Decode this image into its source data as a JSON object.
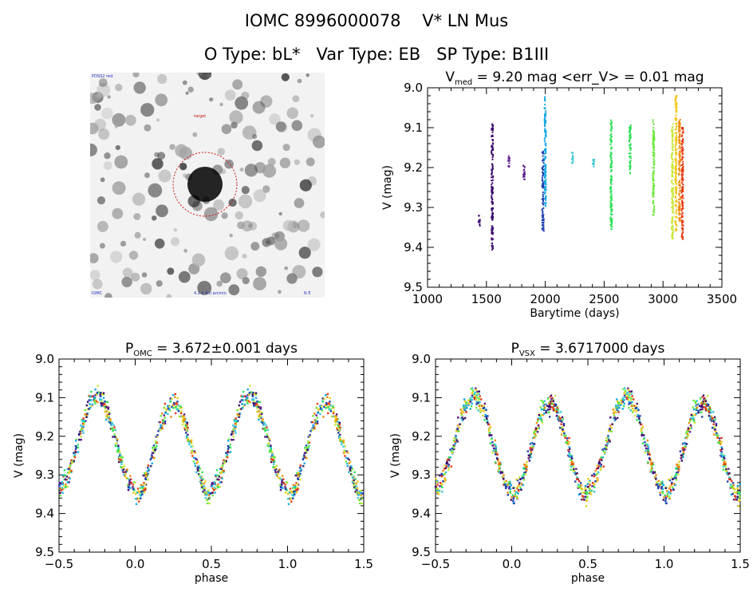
{
  "header": {
    "line1": "IOMC 8996000078    V* LN Mus",
    "line2": "O Type: bL*   Var Type: EB   SP Type: B1III"
  },
  "image_panel": {
    "label_top_left": "POSS2 red",
    "label_bottom_left": "IOMC",
    "label_bottom_center": "4.1 x 4.0 arcmin",
    "label_bottom_right": "N E",
    "label_top_mid": "target"
  },
  "colors": {
    "palette": [
      "#3b0a6e",
      "#5b1a8a",
      "#1e3fae",
      "#16a9e6",
      "#38c6d8",
      "#2ee05a",
      "#6ee83a",
      "#c8e83a",
      "#f0c81a",
      "#f08a10",
      "#e83a10"
    ],
    "stamp_ring": "#d01010"
  },
  "chart_data": [
    {
      "id": "lightcurve",
      "type": "scatter",
      "title_main": "V",
      "title_sub": "med",
      "title_rest": " = 9.20 mag <err_V> = 0.01 mag",
      "xlabel": "Barytime (days)",
      "ylabel": "V (mag)",
      "xlim": [
        1000,
        3500
      ],
      "ylim": [
        9.5,
        9.0
      ],
      "xticks": [
        "1000",
        "1500",
        "2000",
        "2500",
        "3000",
        "3500"
      ],
      "yticks": [
        "9.0",
        "9.1",
        "9.2",
        "9.3",
        "9.4",
        "9.5"
      ],
      "clusters": [
        {
          "x": 1440,
          "ymin": 9.32,
          "ymax": 9.35,
          "c": 0
        },
        {
          "x": 1550,
          "ymin": 9.09,
          "ymax": 9.41,
          "c": 0
        },
        {
          "x": 1690,
          "ymin": 9.17,
          "ymax": 9.2,
          "c": 1
        },
        {
          "x": 1820,
          "ymin": 9.19,
          "ymax": 9.23,
          "c": 1
        },
        {
          "x": 1980,
          "ymin": 9.16,
          "ymax": 9.36,
          "c": 2
        },
        {
          "x": 2000,
          "ymin": 9.02,
          "ymax": 9.3,
          "c": 3
        },
        {
          "x": 2230,
          "ymin": 9.16,
          "ymax": 9.19,
          "c": 4
        },
        {
          "x": 2410,
          "ymin": 9.18,
          "ymax": 9.2,
          "c": 4
        },
        {
          "x": 2560,
          "ymin": 9.08,
          "ymax": 9.36,
          "c": 5
        },
        {
          "x": 2720,
          "ymin": 9.09,
          "ymax": 9.22,
          "c": 5
        },
        {
          "x": 2920,
          "ymin": 9.08,
          "ymax": 9.32,
          "c": 6
        },
        {
          "x": 3080,
          "ymin": 9.09,
          "ymax": 9.38,
          "c": 7
        },
        {
          "x": 3110,
          "ymin": 9.02,
          "ymax": 9.36,
          "c": 8
        },
        {
          "x": 3140,
          "ymin": 9.08,
          "ymax": 9.34,
          "c": 9
        },
        {
          "x": 3165,
          "ymin": 9.1,
          "ymax": 9.38,
          "c": 10
        }
      ]
    },
    {
      "id": "phase_omc",
      "type": "scatter",
      "title_main": "P",
      "title_sub": "OMC",
      "title_rest": " = 3.672±0.001 days",
      "xlabel": "phase",
      "ylabel": "V (mag)",
      "xlim": [
        -0.5,
        1.5
      ],
      "ylim": [
        9.5,
        9.0
      ],
      "xticks": [
        "−0.5",
        "0.0",
        "0.5",
        "1.0",
        "1.5"
      ],
      "yticks": [
        "9.0",
        "9.1",
        "9.2",
        "9.3",
        "9.4",
        "9.5"
      ],
      "period_days": 3.672,
      "model": {
        "mean": 9.225,
        "amp_primary": 0.12,
        "amp_secondary": 0.01,
        "scatter": 0.025
      }
    },
    {
      "id": "phase_vsx",
      "type": "scatter",
      "title_main": "P",
      "title_sub": "VSX",
      "title_rest": " = 3.6717000 days",
      "xlabel": "phase",
      "ylabel": "V (mag)",
      "xlim": [
        -0.5,
        1.5
      ],
      "ylim": [
        9.5,
        9.0
      ],
      "xticks": [
        "−0.5",
        "0.0",
        "0.5",
        "1.0",
        "1.5"
      ],
      "yticks": [
        "9.0",
        "9.1",
        "9.2",
        "9.3",
        "9.4",
        "9.5"
      ],
      "period_days": 3.6717,
      "model": {
        "mean": 9.225,
        "amp_primary": 0.12,
        "amp_secondary": 0.01,
        "scatter": 0.025
      }
    }
  ]
}
